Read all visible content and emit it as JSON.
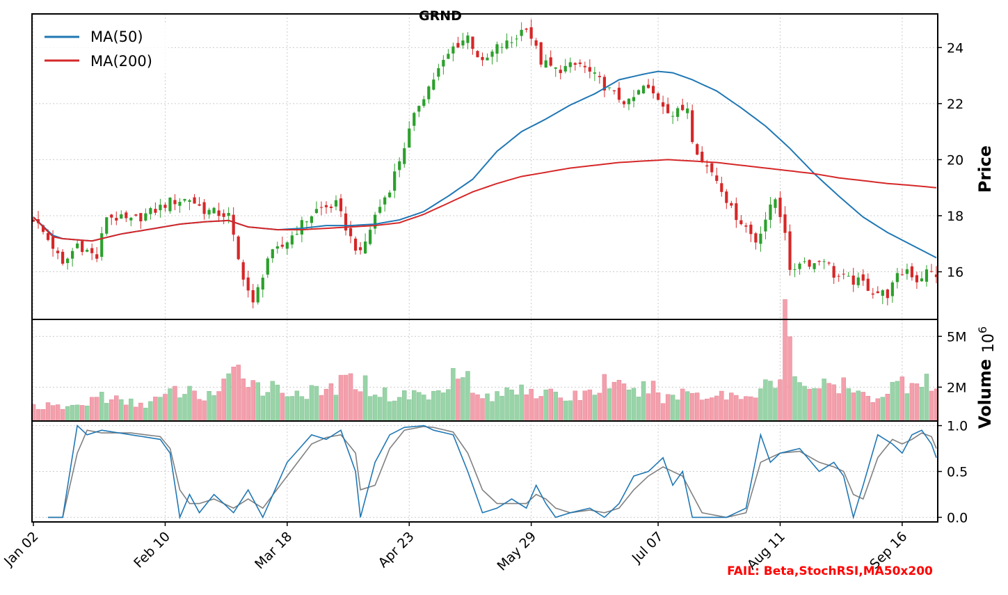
{
  "chart_data": {
    "type": "candlestick",
    "title": "GRND",
    "status_note": "FAIL: Beta,StochRSI,MA50x200",
    "colors": {
      "up": "#2ca02c",
      "down": "#d62728",
      "ma50": "#1f77b4",
      "ma200": "#d62728",
      "stoch_k": "#1f77b4",
      "stoch_d": "#808080",
      "vol_up": "#98d4a8",
      "vol_down": "#f4a0ac",
      "fail": "#ff0000",
      "grid": "#cccccc"
    },
    "price_panel": {
      "ylabel": "Price",
      "yticks": [
        "16",
        "18",
        "20",
        "22",
        "24"
      ],
      "ylim": [
        14.3,
        25.2
      ],
      "grid": true,
      "legend": {
        "position": "top-left",
        "entries": [
          "MA(50)",
          "MA(200)"
        ]
      }
    },
    "volume_panel": {
      "ylabel": "Volume",
      "scale_label": "10",
      "scale_exponent": "6",
      "yticks": [
        "2M",
        "5M"
      ],
      "ylim": [
        0,
        6.0
      ],
      "grid": true
    },
    "stoch_panel": {
      "yticks": [
        "0.0",
        "0.5",
        "1.0"
      ],
      "ylim": [
        -0.05,
        1.05
      ],
      "grid": true
    },
    "x_axis": {
      "tick_labels": [
        "Jan 02",
        "Feb 10",
        "Mar 18",
        "Apr 23",
        "May 29",
        "Jul 07",
        "Aug 11",
        "Sep 16"
      ],
      "tick_index": [
        0,
        27,
        52,
        77,
        102,
        128,
        153,
        178
      ],
      "n_bars": 186
    },
    "price_anchors": [
      [
        0,
        17.9
      ],
      [
        4,
        16.9
      ],
      [
        6,
        16.2
      ],
      [
        9,
        17.0
      ],
      [
        13,
        16.5
      ],
      [
        15,
        18.0
      ],
      [
        20,
        17.8
      ],
      [
        25,
        18.2
      ],
      [
        28,
        18.5
      ],
      [
        32,
        18.6
      ],
      [
        35,
        18.2
      ],
      [
        40,
        18.0
      ],
      [
        42,
        16.4
      ],
      [
        45,
        14.8
      ],
      [
        48,
        16.5
      ],
      [
        51,
        16.9
      ],
      [
        55,
        17.7
      ],
      [
        58,
        18.2
      ],
      [
        62,
        18.4
      ],
      [
        65,
        17.2
      ],
      [
        67,
        16.6
      ],
      [
        70,
        18.0
      ],
      [
        73,
        19.0
      ],
      [
        76,
        20.5
      ],
      [
        79,
        22.0
      ],
      [
        83,
        23.2
      ],
      [
        86,
        24.0
      ],
      [
        89,
        24.4
      ],
      [
        92,
        23.4
      ],
      [
        95,
        24.0
      ],
      [
        98,
        24.2
      ],
      [
        101,
        24.8
      ],
      [
        104,
        23.5
      ],
      [
        107,
        23.2
      ],
      [
        112,
        23.4
      ],
      [
        116,
        22.8
      ],
      [
        119,
        22.3
      ],
      [
        122,
        22.0
      ],
      [
        125,
        22.6
      ],
      [
        128,
        22.2
      ],
      [
        131,
        21.6
      ],
      [
        134,
        21.9
      ],
      [
        135,
        20.8
      ],
      [
        137,
        19.9
      ],
      [
        139,
        19.6
      ],
      [
        141,
        19.0
      ],
      [
        143,
        18.2
      ],
      [
        146,
        17.6
      ],
      [
        148,
        17.1
      ],
      [
        150,
        17.9
      ],
      [
        152,
        18.6
      ],
      [
        154,
        17.5
      ],
      [
        155,
        15.9
      ],
      [
        157,
        16.4
      ],
      [
        160,
        16.3
      ],
      [
        162,
        16.5
      ],
      [
        164,
        15.9
      ],
      [
        167,
        15.7
      ],
      [
        170,
        15.6
      ],
      [
        172,
        15.3
      ],
      [
        175,
        15.2
      ],
      [
        177,
        15.8
      ],
      [
        179,
        16.1
      ],
      [
        181,
        15.7
      ],
      [
        183,
        16.0
      ],
      [
        185,
        15.9
      ]
    ],
    "ma50_anchors": [
      [
        0,
        17.95
      ],
      [
        4,
        17.3
      ],
      [
        6,
        17.18
      ],
      [
        12,
        17.1
      ],
      [
        18,
        17.35
      ],
      [
        25,
        17.55
      ],
      [
        30,
        17.7
      ],
      [
        35,
        17.78
      ],
      [
        40,
        17.83
      ],
      [
        44,
        17.6
      ],
      [
        50,
        17.5
      ],
      [
        55,
        17.55
      ],
      [
        60,
        17.65
      ],
      [
        65,
        17.65
      ],
      [
        70,
        17.7
      ],
      [
        75,
        17.85
      ],
      [
        80,
        18.15
      ],
      [
        85,
        18.7
      ],
      [
        90,
        19.3
      ],
      [
        95,
        20.3
      ],
      [
        100,
        21.0
      ],
      [
        105,
        21.45
      ],
      [
        110,
        21.95
      ],
      [
        115,
        22.35
      ],
      [
        120,
        22.85
      ],
      [
        125,
        23.05
      ],
      [
        128,
        23.15
      ],
      [
        131,
        23.1
      ],
      [
        135,
        22.85
      ],
      [
        140,
        22.45
      ],
      [
        145,
        21.85
      ],
      [
        150,
        21.2
      ],
      [
        155,
        20.4
      ],
      [
        160,
        19.5
      ],
      [
        165,
        18.7
      ],
      [
        170,
        17.95
      ],
      [
        175,
        17.4
      ],
      [
        180,
        16.95
      ],
      [
        185,
        16.5
      ]
    ],
    "ma200_anchors": [
      [
        0,
        17.95
      ],
      [
        4,
        17.25
      ],
      [
        6,
        17.18
      ],
      [
        12,
        17.1
      ],
      [
        18,
        17.35
      ],
      [
        25,
        17.55
      ],
      [
        30,
        17.7
      ],
      [
        35,
        17.78
      ],
      [
        40,
        17.83
      ],
      [
        44,
        17.6
      ],
      [
        50,
        17.5
      ],
      [
        55,
        17.5
      ],
      [
        60,
        17.55
      ],
      [
        65,
        17.6
      ],
      [
        70,
        17.65
      ],
      [
        75,
        17.75
      ],
      [
        80,
        18.05
      ],
      [
        85,
        18.45
      ],
      [
        90,
        18.85
      ],
      [
        95,
        19.15
      ],
      [
        100,
        19.4
      ],
      [
        105,
        19.55
      ],
      [
        110,
        19.7
      ],
      [
        115,
        19.8
      ],
      [
        120,
        19.9
      ],
      [
        125,
        19.95
      ],
      [
        130,
        20.0
      ],
      [
        135,
        19.95
      ],
      [
        140,
        19.9
      ],
      [
        145,
        19.8
      ],
      [
        150,
        19.7
      ],
      [
        155,
        19.6
      ],
      [
        160,
        19.5
      ],
      [
        165,
        19.35
      ],
      [
        170,
        19.25
      ],
      [
        175,
        19.15
      ],
      [
        180,
        19.08
      ],
      [
        185,
        19.0
      ]
    ],
    "volume_anchors": [
      [
        0,
        0.9
      ],
      [
        5,
        0.8
      ],
      [
        10,
        0.9
      ],
      [
        13,
        1.5
      ],
      [
        15,
        1.4
      ],
      [
        18,
        1.1
      ],
      [
        22,
        1.0
      ],
      [
        26,
        1.3
      ],
      [
        30,
        1.8
      ],
      [
        34,
        1.5
      ],
      [
        38,
        1.7
      ],
      [
        41,
        2.6
      ],
      [
        43,
        3.2
      ],
      [
        45,
        2.3
      ],
      [
        48,
        2.0
      ],
      [
        52,
        1.8
      ],
      [
        58,
        1.6
      ],
      [
        62,
        2.0
      ],
      [
        66,
        2.5
      ],
      [
        70,
        1.8
      ],
      [
        74,
        1.4
      ],
      [
        78,
        1.6
      ],
      [
        82,
        1.5
      ],
      [
        86,
        3.0
      ],
      [
        88,
        3.5
      ],
      [
        90,
        1.5
      ],
      [
        95,
        1.4
      ],
      [
        100,
        2.2
      ],
      [
        105,
        1.5
      ],
      [
        110,
        1.4
      ],
      [
        115,
        1.8
      ],
      [
        118,
        2.5
      ],
      [
        122,
        1.5
      ],
      [
        126,
        2.0
      ],
      [
        130,
        1.3
      ],
      [
        134,
        1.8
      ],
      [
        138,
        1.5
      ],
      [
        142,
        1.6
      ],
      [
        146,
        1.4
      ],
      [
        150,
        2.4
      ],
      [
        151,
        2.0
      ],
      [
        153,
        2.2
      ],
      [
        154,
        6.0
      ],
      [
        156,
        3.0
      ],
      [
        158,
        2.2
      ],
      [
        162,
        2.0
      ],
      [
        166,
        2.0
      ],
      [
        170,
        1.4
      ],
      [
        174,
        1.6
      ],
      [
        177,
        2.2
      ],
      [
        180,
        2.3
      ],
      [
        182,
        2.8
      ],
      [
        185,
        1.8
      ]
    ],
    "stoch_k_anchors": [
      [
        3,
        0.0
      ],
      [
        6,
        0.0
      ],
      [
        9,
        1.0
      ],
      [
        11,
        0.9
      ],
      [
        14,
        0.95
      ],
      [
        20,
        0.9
      ],
      [
        26,
        0.85
      ],
      [
        28,
        0.7
      ],
      [
        30,
        0.0
      ],
      [
        32,
        0.25
      ],
      [
        34,
        0.05
      ],
      [
        37,
        0.25
      ],
      [
        41,
        0.05
      ],
      [
        44,
        0.3
      ],
      [
        47,
        0.0
      ],
      [
        52,
        0.6
      ],
      [
        57,
        0.9
      ],
      [
        60,
        0.85
      ],
      [
        63,
        0.95
      ],
      [
        66,
        0.5
      ],
      [
        67,
        0.0
      ],
      [
        70,
        0.6
      ],
      [
        73,
        0.9
      ],
      [
        76,
        0.98
      ],
      [
        80,
        1.0
      ],
      [
        82,
        0.95
      ],
      [
        86,
        0.9
      ],
      [
        89,
        0.5
      ],
      [
        92,
        0.05
      ],
      [
        95,
        0.1
      ],
      [
        98,
        0.2
      ],
      [
        101,
        0.1
      ],
      [
        103,
        0.35
      ],
      [
        105,
        0.15
      ],
      [
        107,
        0.0
      ],
      [
        110,
        0.05
      ],
      [
        114,
        0.1
      ],
      [
        117,
        0.0
      ],
      [
        120,
        0.15
      ],
      [
        123,
        0.45
      ],
      [
        126,
        0.5
      ],
      [
        129,
        0.65
      ],
      [
        131,
        0.35
      ],
      [
        133,
        0.5
      ],
      [
        135,
        0.0
      ],
      [
        137,
        0.0
      ],
      [
        142,
        0.0
      ],
      [
        146,
        0.1
      ],
      [
        149,
        0.9
      ],
      [
        151,
        0.6
      ],
      [
        153,
        0.7
      ],
      [
        157,
        0.75
      ],
      [
        161,
        0.5
      ],
      [
        164,
        0.6
      ],
      [
        166,
        0.45
      ],
      [
        168,
        0.0
      ],
      [
        170,
        0.35
      ],
      [
        173,
        0.9
      ],
      [
        176,
        0.8
      ],
      [
        178,
        0.7
      ],
      [
        180,
        0.9
      ],
      [
        182,
        0.95
      ],
      [
        184,
        0.8
      ],
      [
        185,
        0.65
      ]
    ],
    "stoch_d_anchors": [
      [
        3,
        0.0
      ],
      [
        6,
        0.0
      ],
      [
        9,
        0.7
      ],
      [
        11,
        0.95
      ],
      [
        14,
        0.92
      ],
      [
        20,
        0.92
      ],
      [
        26,
        0.88
      ],
      [
        28,
        0.75
      ],
      [
        30,
        0.3
      ],
      [
        32,
        0.15
      ],
      [
        34,
        0.15
      ],
      [
        37,
        0.2
      ],
      [
        41,
        0.1
      ],
      [
        44,
        0.2
      ],
      [
        47,
        0.1
      ],
      [
        52,
        0.45
      ],
      [
        57,
        0.8
      ],
      [
        60,
        0.87
      ],
      [
        63,
        0.9
      ],
      [
        66,
        0.7
      ],
      [
        67,
        0.3
      ],
      [
        70,
        0.35
      ],
      [
        73,
        0.75
      ],
      [
        76,
        0.95
      ],
      [
        80,
        0.99
      ],
      [
        82,
        0.98
      ],
      [
        86,
        0.93
      ],
      [
        89,
        0.7
      ],
      [
        92,
        0.3
      ],
      [
        95,
        0.15
      ],
      [
        98,
        0.15
      ],
      [
        101,
        0.15
      ],
      [
        103,
        0.25
      ],
      [
        105,
        0.2
      ],
      [
        107,
        0.1
      ],
      [
        110,
        0.05
      ],
      [
        114,
        0.08
      ],
      [
        117,
        0.05
      ],
      [
        120,
        0.1
      ],
      [
        123,
        0.3
      ],
      [
        126,
        0.45
      ],
      [
        129,
        0.55
      ],
      [
        131,
        0.5
      ],
      [
        133,
        0.45
      ],
      [
        135,
        0.25
      ],
      [
        137,
        0.05
      ],
      [
        142,
        0.0
      ],
      [
        146,
        0.05
      ],
      [
        149,
        0.6
      ],
      [
        151,
        0.65
      ],
      [
        153,
        0.7
      ],
      [
        157,
        0.72
      ],
      [
        161,
        0.6
      ],
      [
        164,
        0.55
      ],
      [
        166,
        0.5
      ],
      [
        168,
        0.25
      ],
      [
        170,
        0.2
      ],
      [
        173,
        0.65
      ],
      [
        176,
        0.85
      ],
      [
        178,
        0.8
      ],
      [
        180,
        0.85
      ],
      [
        182,
        0.92
      ],
      [
        184,
        0.88
      ],
      [
        185,
        0.75
      ]
    ]
  }
}
